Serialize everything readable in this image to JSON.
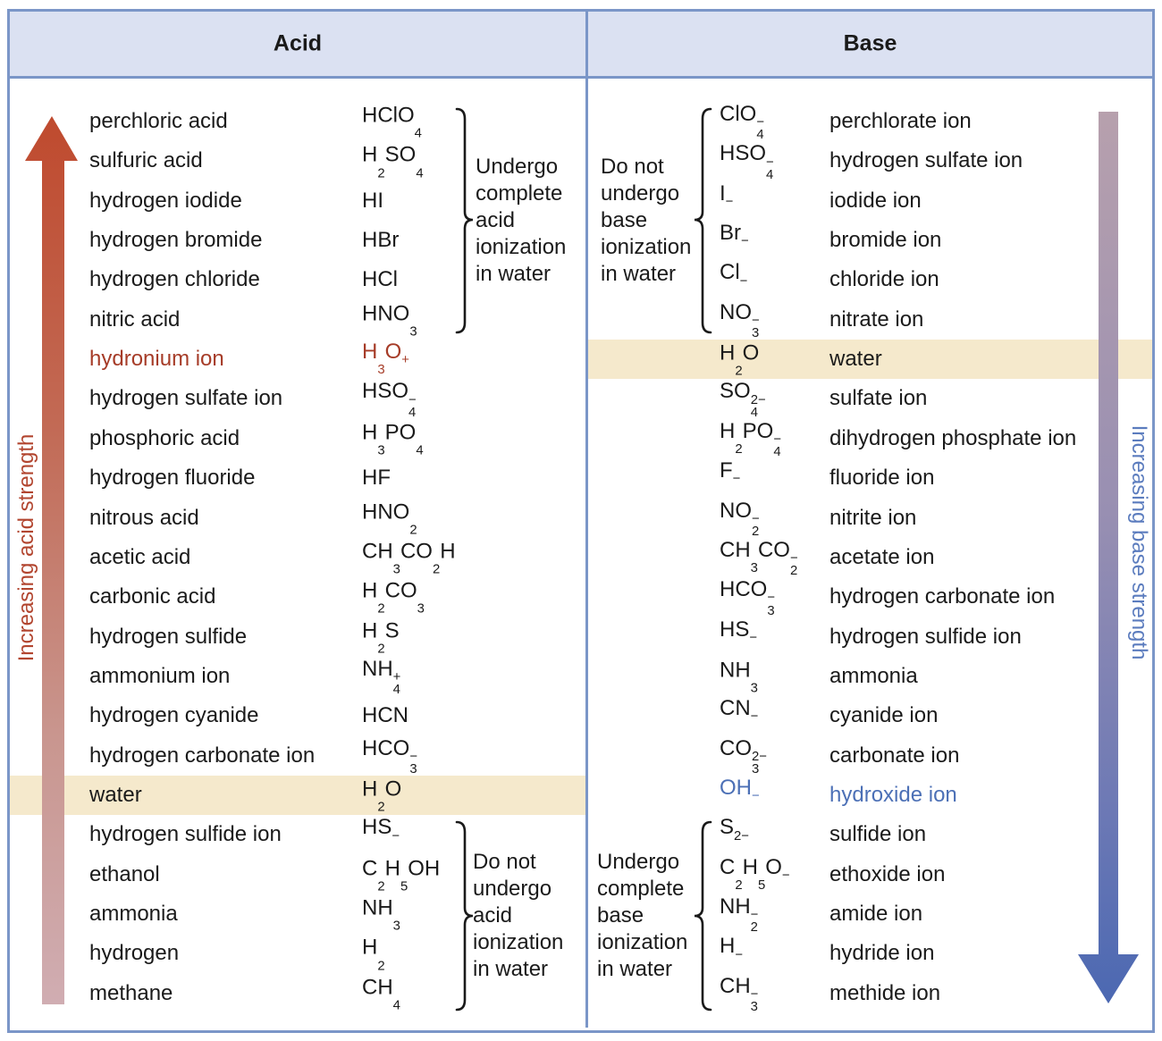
{
  "header": {
    "acid": "Acid",
    "base": "Base"
  },
  "left_axis_label": "Increasing acid strength",
  "right_axis_label": "Increasing base strength",
  "annotations": {
    "acid_strong": "Undergo\ncomplete\nacid\nionization\nin water",
    "acid_weak": "Do not\nundergo\nacid\nionization\nin water",
    "base_weak": "Do not\nundergo\nbase\nionization\nin water",
    "base_strong": "Undergo\ncomplete\nbase\nionization\nin water"
  },
  "acids": [
    {
      "name": "perchloric acid",
      "formula": "HClO_4"
    },
    {
      "name": "sulfuric acid",
      "formula": "H_2SO_4"
    },
    {
      "name": "hydrogen iodide",
      "formula": "HI"
    },
    {
      "name": "hydrogen bromide",
      "formula": "HBr"
    },
    {
      "name": "hydrogen chloride",
      "formula": "HCl"
    },
    {
      "name": "nitric acid",
      "formula": "HNO_3"
    },
    {
      "name": "hydronium ion",
      "formula": "H_3O^+",
      "color": "red"
    },
    {
      "name": "hydrogen sulfate ion",
      "formula": "HSO_4^−"
    },
    {
      "name": "phosphoric acid",
      "formula": "H_3PO_4"
    },
    {
      "name": "hydrogen fluoride",
      "formula": "HF"
    },
    {
      "name": "nitrous acid",
      "formula": "HNO_2"
    },
    {
      "name": "acetic acid",
      "formula": "CH_3CO_2H"
    },
    {
      "name": "carbonic acid",
      "formula": "H_2CO_3"
    },
    {
      "name": "hydrogen sulfide",
      "formula": "H_2S"
    },
    {
      "name": "ammonium ion",
      "formula": "NH_4^+"
    },
    {
      "name": "hydrogen cyanide",
      "formula": "HCN"
    },
    {
      "name": "hydrogen carbonate ion",
      "formula": "HCO_3^−"
    },
    {
      "name": "water",
      "formula": "H_2O",
      "highlight": true
    },
    {
      "name": "hydrogen sulfide ion",
      "formula": "HS^−"
    },
    {
      "name": "ethanol",
      "formula": "C_2H_5OH"
    },
    {
      "name": "ammonia",
      "formula": "NH_3"
    },
    {
      "name": "hydrogen",
      "formula": "H_2"
    },
    {
      "name": "methane",
      "formula": "CH_4"
    }
  ],
  "bases": [
    {
      "formula": "ClO_4^−",
      "name": "perchlorate ion"
    },
    {
      "formula": "HSO_4^−",
      "name": "hydrogen sulfate ion"
    },
    {
      "formula": "I^−",
      "name": "iodide ion"
    },
    {
      "formula": "Br^−",
      "name": "bromide ion"
    },
    {
      "formula": "Cl^−",
      "name": "chloride ion"
    },
    {
      "formula": "NO_3^−",
      "name": "nitrate ion"
    },
    {
      "formula": "H_2O",
      "name": "water",
      "highlight": true
    },
    {
      "formula": "SO_4^2−",
      "name": "sulfate ion"
    },
    {
      "formula": "H_2PO_4^−",
      "name": "dihydrogen phosphate ion"
    },
    {
      "formula": "F^−",
      "name": "fluoride ion"
    },
    {
      "formula": "NO_2^−",
      "name": "nitrite ion"
    },
    {
      "formula": "CH_3CO_2^−",
      "name": "acetate ion"
    },
    {
      "formula": "HCO_3^−",
      "name": "hydrogen carbonate ion"
    },
    {
      "formula": "HS^−",
      "name": "hydrogen sulfide ion"
    },
    {
      "formula": "NH_3",
      "name": "ammonia"
    },
    {
      "formula": "CN^−",
      "name": "cyanide ion"
    },
    {
      "formula": "CO_3^2−",
      "name": "carbonate ion"
    },
    {
      "formula": "OH^−",
      "name": "hydroxide ion",
      "color": "blue"
    },
    {
      "formula": "S^2−",
      "name": "sulfide ion"
    },
    {
      "formula": "C_2H_5O^−",
      "name": "ethoxide ion"
    },
    {
      "formula": "NH_2^−",
      "name": "amide ion"
    },
    {
      "formula": "H^−",
      "name": "hydride ion"
    },
    {
      "formula": "CH_3^−",
      "name": "methide ion"
    }
  ],
  "colors": {
    "border": "#7b96c8",
    "header_bg": "#dbe1f2",
    "highlight": "#f5e9cc",
    "text": "#1a1a1a",
    "acid_accent": "#a63c28",
    "base_accent": "#4c70b6",
    "arrow_red": "#bf4a2e",
    "arrow_pink": "#d0adb2",
    "arrow_mauve": "#b7a0ad",
    "arrow_blue": "#4b68b2"
  }
}
